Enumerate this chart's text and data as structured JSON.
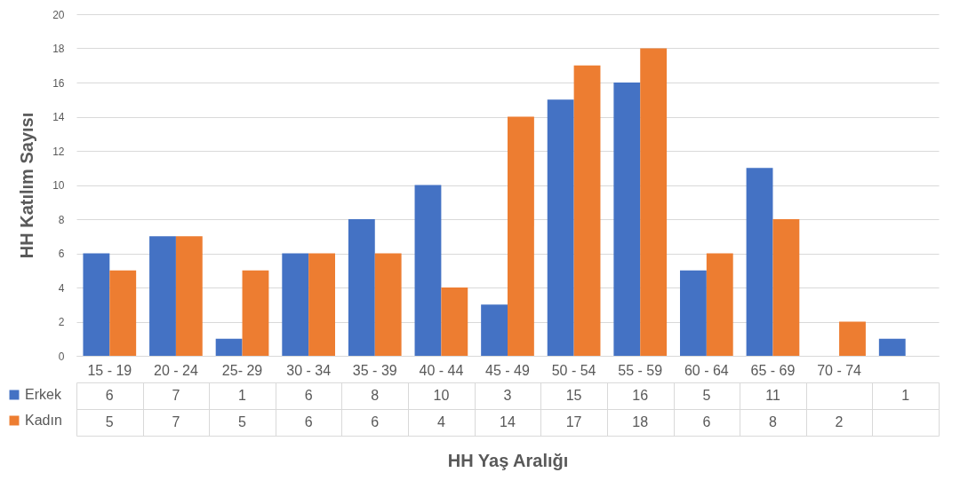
{
  "chart_data": {
    "type": "bar",
    "xlabel": "HH Yaş Aralığı",
    "ylabel": "HH Katılım Sayısı",
    "categories": [
      "15 - 19",
      "20 - 24",
      "25- 29",
      "30 - 34",
      "35 - 39",
      "40 - 44",
      "45 - 49",
      "50 - 54",
      "55 - 59",
      "60 - 64",
      "65 - 69",
      "70 - 74",
      null
    ],
    "series": [
      {
        "name": "Erkek",
        "color": "#4472c4",
        "values": [
          6,
          7,
          1,
          6,
          8,
          10,
          3,
          15,
          16,
          5,
          11,
          null,
          1
        ]
      },
      {
        "name": "Kadın",
        "color": "#ed7d31",
        "values": [
          5,
          7,
          5,
          6,
          6,
          4,
          14,
          17,
          18,
          6,
          8,
          2,
          null
        ]
      }
    ],
    "ylim": [
      0,
      20
    ],
    "yticks": [
      0,
      2,
      4,
      6,
      8,
      10,
      12,
      14,
      16,
      18,
      20
    ],
    "grid": "y",
    "legend": "bottom left",
    "data_labels": true
  }
}
